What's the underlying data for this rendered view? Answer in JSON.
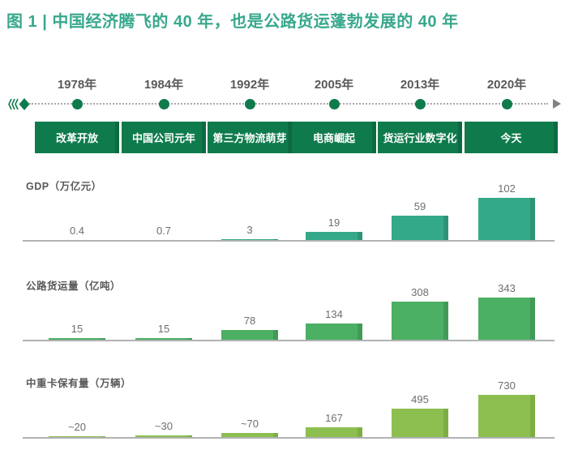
{
  "title": "图 1 | 中国经济腾飞的 40 年，也是公路货运蓬勃发展的 40 年",
  "timeline": {
    "years": [
      "1978年",
      "1984年",
      "1992年",
      "2005年",
      "2013年",
      "2020年"
    ],
    "milestones": [
      "改革开放",
      "中国公司元年",
      "第三方物流萌芽",
      "电商崛起",
      "货运行业数字化",
      "今天"
    ],
    "colors": {
      "year_text": "#58595b",
      "milestone_bg": "#0f7b4c",
      "milestone_edge": "#0c6a41",
      "dot": "#0f7b4c",
      "dotted_line": "#a7a9ac",
      "arrow": "#808285"
    }
  },
  "chart_data": [
    {
      "type": "bar",
      "title": "GDP（万亿元）",
      "categories": [
        "1978年",
        "1984年",
        "1992年",
        "2005年",
        "2013年",
        "2020年"
      ],
      "values": [
        0.4,
        0.7,
        3,
        19,
        59,
        102
      ],
      "value_labels": [
        "0.4",
        "0.7",
        "3",
        "19",
        "59",
        "102"
      ],
      "ylim": [
        0,
        102
      ],
      "bar_color": "#34a98a",
      "bar_edge_color": "#2d9377",
      "grid": false,
      "legend": "none"
    },
    {
      "type": "bar",
      "title": "公路货运量（亿吨）",
      "categories": [
        "1978年",
        "1984年",
        "1992年",
        "2005年",
        "2013年",
        "2020年"
      ],
      "values": [
        15,
        15,
        78,
        134,
        308,
        343
      ],
      "value_labels": [
        "15",
        "15",
        "78",
        "134",
        "308",
        "343"
      ],
      "ylim": [
        0,
        343
      ],
      "bar_color": "#4baf64",
      "bar_edge_color": "#419a58",
      "grid": false,
      "legend": "none"
    },
    {
      "type": "bar",
      "title": "中重卡保有量（万辆）",
      "categories": [
        "1978年",
        "1984年",
        "1992年",
        "2005年",
        "2013年",
        "2020年"
      ],
      "values": [
        20,
        30,
        70,
        167,
        495,
        730
      ],
      "value_labels": [
        "~20",
        "~30",
        "~70",
        "167",
        "495",
        "730"
      ],
      "ylim": [
        0,
        730
      ],
      "bar_color": "#8dbf50",
      "bar_edge_color": "#7ead44",
      "grid": false,
      "legend": "none"
    }
  ],
  "colors": {
    "title": "#38a88d",
    "value_text": "#6d6e71",
    "baseline": "#b0b2b4"
  }
}
